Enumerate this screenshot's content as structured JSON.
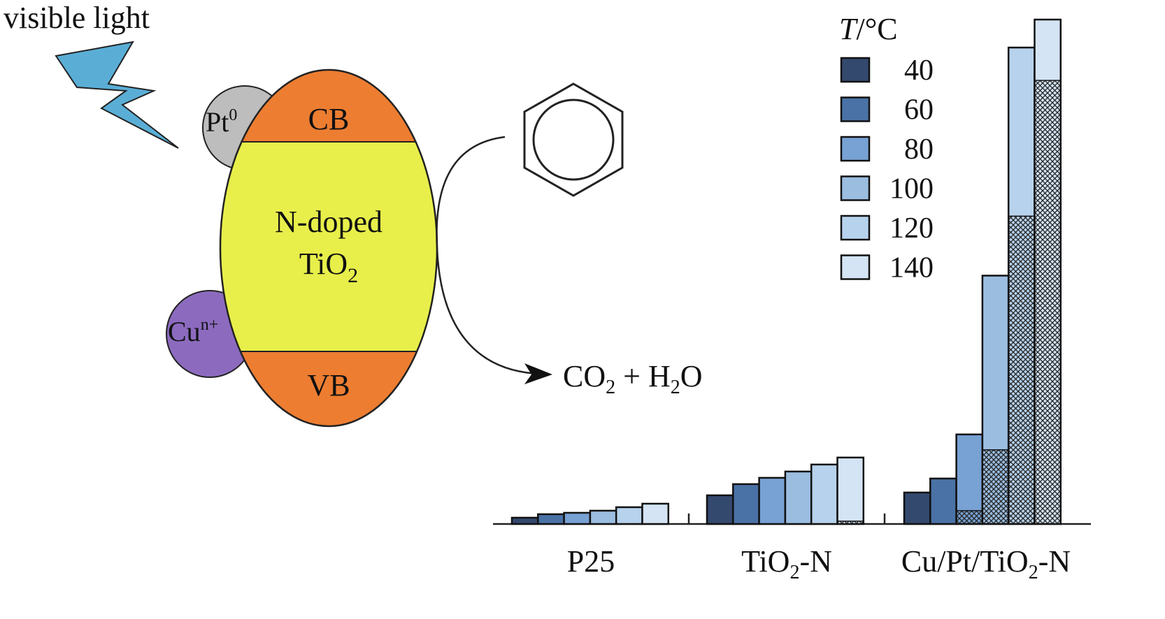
{
  "diagram": {
    "light_label": "visible light",
    "pt_label": "Pt",
    "pt_sup": "0",
    "cu_label": "Cu",
    "cu_sup": "n+",
    "cb_label": "CB",
    "vb_label": "VB",
    "catalyst_line1": "N-doped",
    "catalyst_line2": "TiO",
    "catalyst_sub": "2",
    "product_co2": "CO",
    "product_sub1": "2",
    "product_plus": " + H",
    "product_sub2": "2",
    "product_o": "O",
    "colors": {
      "light": "#5aaed6",
      "pt": "#bdbdbd",
      "cu": "#8c6bbf",
      "band": "#ed7d31",
      "catalyst": "#e8ef4a"
    }
  },
  "chart_data": {
    "type": "bar",
    "categories": [
      "P25",
      "TiO2-N",
      "Cu/Pt/TiO2-N"
    ],
    "category_labels": [
      {
        "main": "P25",
        "sub": "",
        "rest": ""
      },
      {
        "main": "TiO",
        "sub": "2",
        "rest": "-N"
      },
      {
        "main": "Cu/Pt/TiO",
        "sub": "2",
        "rest": "-N"
      }
    ],
    "legend_title_italic": "T",
    "legend_title_rest": "/°C",
    "legend_placement": "top-right",
    "series": [
      {
        "name": "40",
        "color": "#34496e",
        "values": [
          9,
          41,
          45
        ],
        "hatched": [
          0,
          0,
          0
        ]
      },
      {
        "name": "60",
        "color": "#4a72a6",
        "values": [
          14,
          57,
          65
        ],
        "hatched": [
          0,
          0,
          0
        ]
      },
      {
        "name": "80",
        "color": "#78a2d4",
        "values": [
          16,
          66,
          128
        ],
        "hatched": [
          0,
          0,
          19
        ]
      },
      {
        "name": "100",
        "color": "#9bbde0",
        "values": [
          19,
          75,
          355
        ],
        "hatched": [
          0,
          0,
          106
        ]
      },
      {
        "name": "120",
        "color": "#b7d2ec",
        "values": [
          24,
          85,
          681
        ],
        "hatched": [
          0,
          0,
          440
        ]
      },
      {
        "name": "140",
        "color": "#d4e4f4",
        "values": [
          29,
          95,
          721
        ],
        "hatched": [
          0,
          4,
          634
        ]
      }
    ],
    "ylim": [
      0,
      730
    ],
    "y_axis_shown": false,
    "grid": false,
    "xlabel": "",
    "ylabel": ""
  }
}
